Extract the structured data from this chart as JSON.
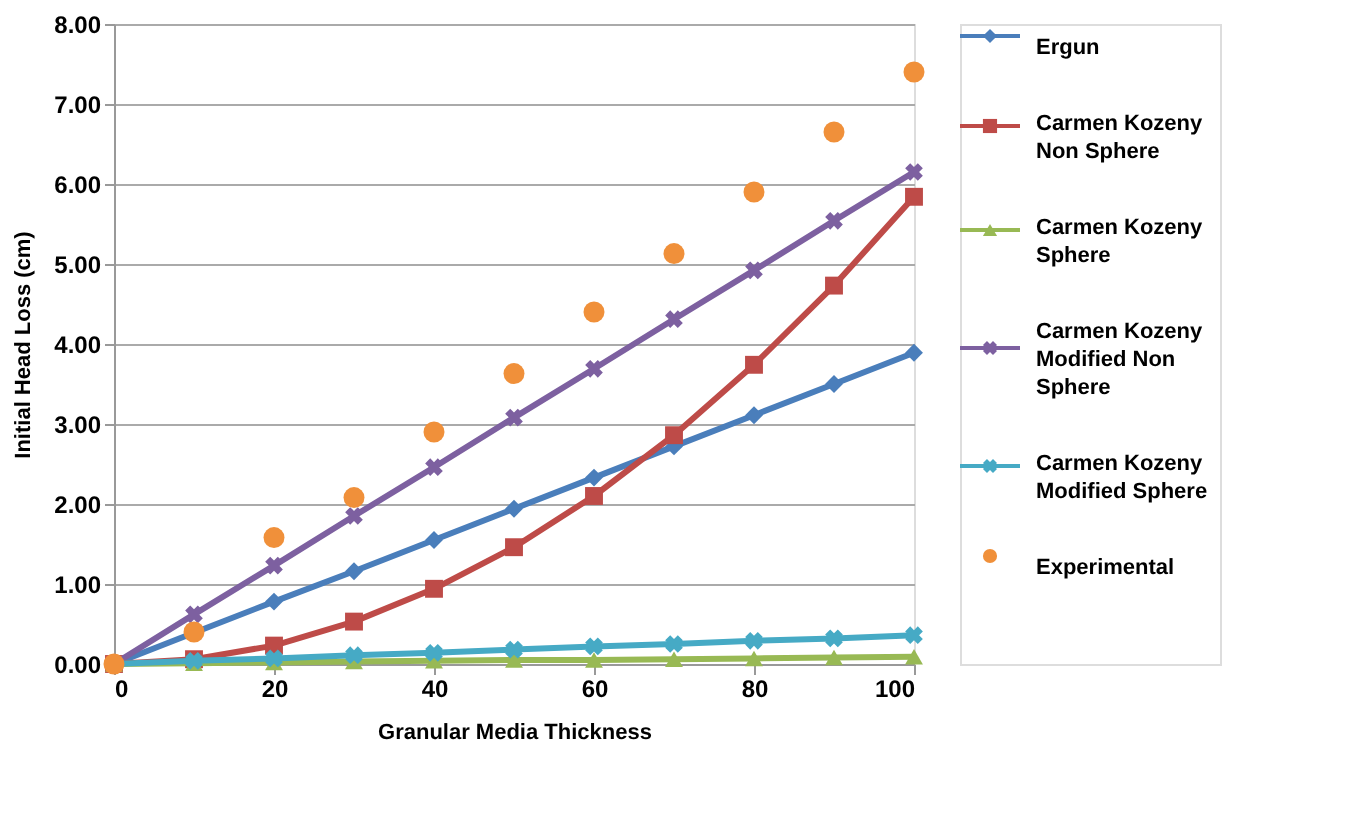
{
  "chart_data": {
    "type": "line",
    "xlabel": "Granular Media Thickness",
    "ylabel": "Initial Head Loss (cm)",
    "x": [
      0,
      10,
      20,
      30,
      40,
      50,
      60,
      70,
      80,
      90,
      100
    ],
    "xlim": [
      0,
      100
    ],
    "xticks": [
      0,
      20,
      40,
      60,
      80,
      100
    ],
    "ylim": [
      0,
      8
    ],
    "yticks": [
      {
        "value": 0,
        "label": "0.00"
      },
      {
        "value": 1,
        "label": "1.00"
      },
      {
        "value": 2,
        "label": "2.00"
      },
      {
        "value": 3,
        "label": "3.00"
      },
      {
        "value": 4,
        "label": "4.00"
      },
      {
        "value": 5,
        "label": "5.00"
      },
      {
        "value": 6,
        "label": "6.00"
      },
      {
        "value": 7,
        "label": "7.00"
      },
      {
        "value": 8,
        "label": "8.00"
      }
    ],
    "grid": "y",
    "legend": "right",
    "series": [
      {
        "name": "Ergun",
        "color": "#4a7ebb",
        "marker": "diamond",
        "values": [
          0,
          0.39,
          0.78,
          1.16,
          1.55,
          1.94,
          2.33,
          2.72,
          3.11,
          3.5,
          3.89
        ]
      },
      {
        "name": "Carmen Kozeny Non Sphere",
        "color": "#be4b48",
        "marker": "square",
        "values": [
          0,
          0.06,
          0.23,
          0.53,
          0.94,
          1.46,
          2.1,
          2.86,
          3.74,
          4.73,
          5.84
        ]
      },
      {
        "name": "Carmen Kozeny Sphere",
        "color": "#98b954",
        "marker": "triangle",
        "values": [
          0,
          0.01,
          0.02,
          0.03,
          0.04,
          0.05,
          0.05,
          0.06,
          0.07,
          0.08,
          0.09
        ]
      },
      {
        "name": "Carmen Kozeny Modified Non Sphere",
        "color": "#7d60a0",
        "marker": "cross",
        "values": [
          0,
          0.62,
          1.23,
          1.85,
          2.46,
          3.08,
          3.69,
          4.31,
          4.92,
          5.54,
          6.15
        ]
      },
      {
        "name": "Carmen Kozeny Modified Sphere",
        "color": "#46aac5",
        "marker": "cross",
        "values": [
          0,
          0.04,
          0.07,
          0.11,
          0.14,
          0.18,
          0.22,
          0.25,
          0.29,
          0.32,
          0.36
        ]
      },
      {
        "name": "Experimental",
        "type": "scatter",
        "color": "#f0903a",
        "marker": "circle",
        "values": [
          0,
          0.4,
          1.58,
          2.08,
          2.9,
          3.63,
          4.4,
          5.13,
          5.9,
          6.65,
          7.4
        ]
      }
    ]
  }
}
